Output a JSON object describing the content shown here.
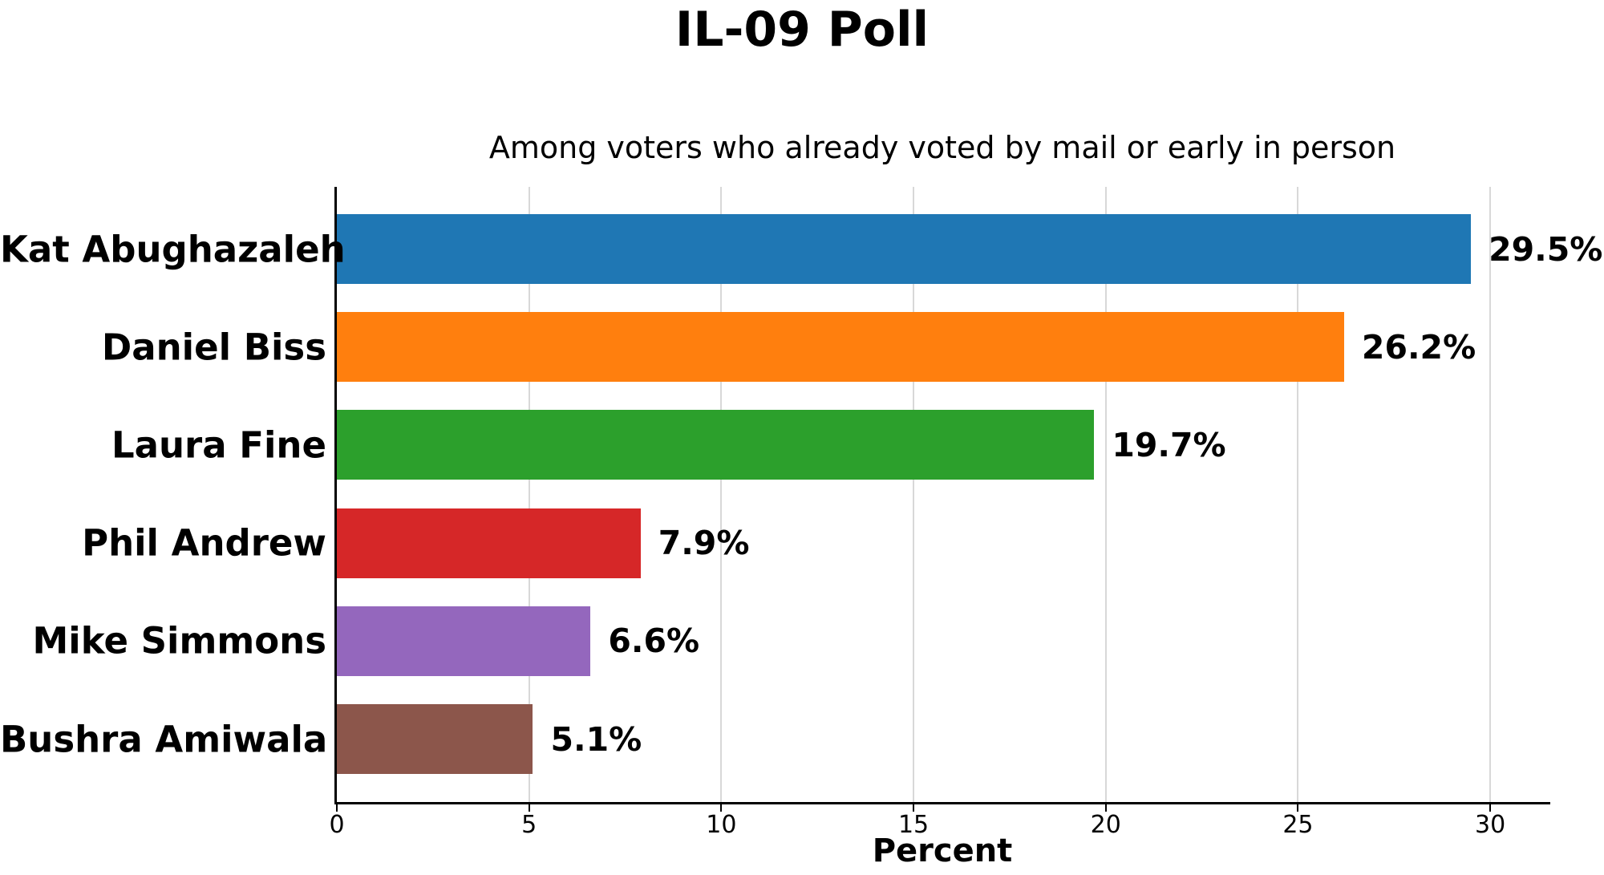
{
  "chart_data": {
    "type": "bar",
    "orientation": "horizontal",
    "title": "IL-09 Poll",
    "subtitle": "Among voters who already voted by mail or early in person",
    "xlabel": "Percent",
    "categories": [
      "Kat Abughazaleh",
      "Daniel Biss",
      "Laura Fine",
      "Phil Andrew",
      "Mike Simmons",
      "Bushra Amiwala"
    ],
    "values": [
      29.5,
      26.2,
      19.7,
      7.9,
      6.6,
      5.1
    ],
    "value_labels": [
      "29.5%",
      "26.2%",
      "19.7%",
      "7.9%",
      "6.6%",
      "5.1%"
    ],
    "bar_colors": [
      "#1f77b4",
      "#ff7f0e",
      "#2ca02c",
      "#d62728",
      "#9467bd",
      "#8c564b"
    ],
    "xticks": [
      0,
      5,
      10,
      15,
      20,
      25,
      30
    ],
    "xlim": [
      0,
      31.5
    ],
    "grid": true,
    "grid_color": "#d8d8d8",
    "legend": "none",
    "text_color": "#000000",
    "background_color": "#ffffff"
  }
}
